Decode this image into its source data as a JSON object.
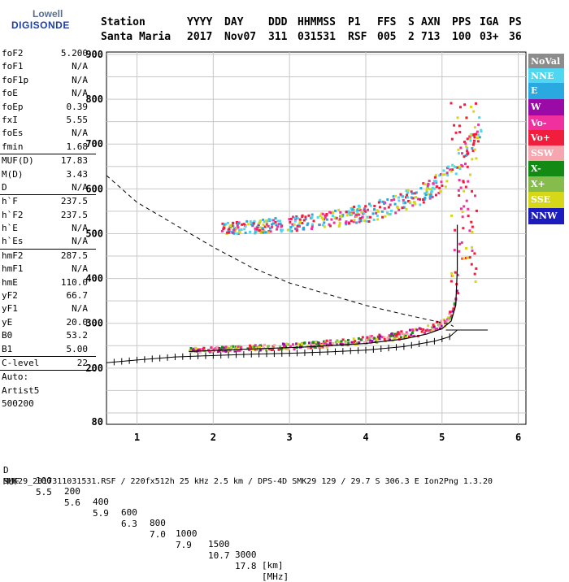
{
  "logo": {
    "top": "Lowell",
    "bottom": "DIGISONDE"
  },
  "header": {
    "labels": [
      "Station",
      "YYYY",
      "DAY",
      "DDD",
      "HHMMSS",
      "P1",
      "FFS",
      "S",
      "AXN",
      "PPS",
      "IGA",
      "PS"
    ],
    "values": [
      "Santa Maria",
      "2017",
      "Nov07",
      "311",
      "031531",
      "RSF",
      "005",
      "2",
      "713",
      "100",
      "03+",
      "36"
    ]
  },
  "params": [
    {
      "label": "foF2",
      "value": "5.200"
    },
    {
      "label": "foF1",
      "value": "N/A"
    },
    {
      "label": "foF1p",
      "value": "N/A"
    },
    {
      "label": "foE",
      "value": "N/A"
    },
    {
      "label": "foEp",
      "value": "0.39"
    },
    {
      "label": "fxI",
      "value": "5.55"
    },
    {
      "label": "foEs",
      "value": "N/A"
    },
    {
      "label": "fmin",
      "value": "1.68"
    },
    {
      "label": "MUF(D)",
      "value": "17.83"
    },
    {
      "label": "M(D)",
      "value": "3.43"
    },
    {
      "label": "D",
      "value": "N/A"
    },
    {
      "label": "h`F",
      "value": "237.5"
    },
    {
      "label": "h`F2",
      "value": "237.5"
    },
    {
      "label": "h`E",
      "value": "N/A"
    },
    {
      "label": "h`Es",
      "value": "N/A"
    },
    {
      "label": "hmF2",
      "value": "287.5"
    },
    {
      "label": "hmF1",
      "value": "N/A"
    },
    {
      "label": "hmE",
      "value": "110.0"
    },
    {
      "label": "yF2",
      "value": "66.7"
    },
    {
      "label": "yF1",
      "value": "N/A"
    },
    {
      "label": "yE",
      "value": "20.0"
    },
    {
      "label": "B0",
      "value": "53.2"
    },
    {
      "label": "B1",
      "value": "5.00"
    },
    {
      "label": "C-level",
      "value": "22"
    }
  ],
  "autoscaling": {
    "line1": "Auto:",
    "line2": "Artist5",
    "line3": "500200"
  },
  "legend": [
    {
      "label": "NoVal",
      "color": "#8c8c8c"
    },
    {
      "label": "NNE",
      "color": "#4fd6f0"
    },
    {
      "label": "E",
      "color": "#29a9e0"
    },
    {
      "label": "W",
      "color": "#9a0aa6"
    },
    {
      "label": "Vo-",
      "color": "#f0309e"
    },
    {
      "label": "Vo+",
      "color": "#f01e3c"
    },
    {
      "label": "SSW",
      "color": "#f7a6b0"
    },
    {
      "label": "X-",
      "color": "#138a13"
    },
    {
      "label": "X+",
      "color": "#86bc4c"
    },
    {
      "label": "SSE",
      "color": "#d7d71a"
    },
    {
      "label": "NNW",
      "color": "#1c1cbe"
    }
  ],
  "muf_table": {
    "d_label": "D",
    "d_values": [
      "100",
      "200",
      "400",
      "600",
      "800",
      "1000",
      "1500",
      "3000",
      "[km]"
    ],
    "muf_label": "MUF",
    "muf_values": [
      "5.5",
      "5.6",
      "5.9",
      "6.3",
      "7.0",
      "7.9",
      "10.7",
      "17.8",
      "[MHz]"
    ]
  },
  "footer": "SMK29_2017311031531.RSF / 220fx512h 25 kHz 2.5 km / DPS-4D SMK29 129 / 29.7 S 306.3 E Ion2Png 1.3.20",
  "chart_data": {
    "type": "scatter",
    "xlim": [
      0.6,
      6.1
    ],
    "ylim": [
      80,
      900
    ],
    "x_ticks": [
      1,
      2,
      3,
      4,
      5,
      6
    ],
    "y_ticks": [
      80,
      200,
      300,
      400,
      500,
      600,
      700,
      800,
      900
    ],
    "grid": true,
    "series": [
      {
        "name": "trace-E-F2-lower",
        "x": [
          1.68,
          2.0,
          2.4,
          2.8,
          3.2,
          3.6,
          4.0,
          4.3,
          4.6,
          4.8,
          4.95,
          5.05,
          5.12,
          5.16,
          5.2
        ],
        "y": [
          240,
          242,
          245,
          247,
          250,
          255,
          262,
          268,
          276,
          285,
          295,
          305,
          325,
          345,
          380
        ]
      },
      {
        "name": "trace-F2-multihop",
        "x": [
          2.1,
          2.5,
          3.0,
          3.5,
          4.0,
          4.4,
          4.7,
          4.9,
          5.05,
          5.2,
          5.3,
          5.4,
          5.5
        ],
        "y": [
          508,
          512,
          518,
          526,
          540,
          560,
          580,
          600,
          620,
          650,
          680,
          700,
          740
        ]
      },
      {
        "name": "profile",
        "x": [
          1.68,
          2.4,
          3.2,
          4.0,
          4.5,
          4.8,
          5.0,
          5.12,
          5.18,
          5.2,
          5.2
        ],
        "y": [
          237,
          242,
          247,
          255,
          265,
          276,
          288,
          305,
          340,
          420,
          520
        ]
      },
      {
        "name": "profile-lower-ticks",
        "x": [
          0.6,
          1.0,
          1.5,
          2.0,
          2.5,
          3.0,
          3.5,
          4.0,
          4.5,
          4.9,
          5.1,
          5.2
        ],
        "y": [
          212,
          218,
          225,
          228,
          231,
          233,
          236,
          240,
          248,
          260,
          270,
          285
        ]
      },
      {
        "name": "dashed-envelope",
        "x": [
          0.6,
          1.0,
          1.5,
          2.0,
          2.5,
          3.0,
          3.5,
          4.0,
          4.5,
          4.9,
          5.1,
          5.15
        ],
        "y": [
          630,
          570,
          520,
          470,
          425,
          390,
          365,
          340,
          320,
          305,
          298,
          293
        ]
      }
    ]
  }
}
